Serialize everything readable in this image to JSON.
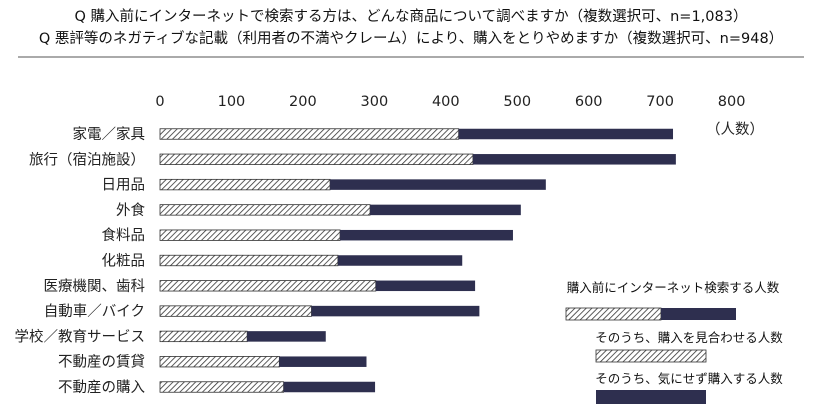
{
  "chart_data": {
    "type": "bar",
    "title_lines": [
      "Q 購入前にインターネットで検索する方は、どんな商品について調べますか（複数選択可、n=1,083）",
      "Q 悪評等のネガティブな記載（利用者の不満やクレーム）により、購入をとりやめますか（複数選択可、n=948）"
    ],
    "unit_label": "（人数）",
    "axis": {
      "min": 0,
      "max": 800,
      "ticks": [
        0,
        100,
        200,
        300,
        400,
        500,
        600,
        700,
        800
      ]
    },
    "categories": [
      "家電／家具",
      "旅行（宿泊施設）",
      "日用品",
      "外食",
      "食料品",
      "化粧品",
      "医療機関、歯科",
      "自動車／バイク",
      "学校／教育サービス",
      "不動産の賃貸",
      "不動産の購入"
    ],
    "series": [
      {
        "name": "購入前にインターネット検索する人数",
        "values": [
          718,
          722,
          540,
          505,
          494,
          423,
          441,
          447,
          232,
          289,
          301
        ]
      },
      {
        "name": "そのうち、購入を見合わせる人数",
        "values": [
          418,
          438,
          238,
          294,
          252,
          249,
          302,
          212,
          122,
          167,
          173
        ]
      },
      {
        "name": "そのうち、気にせず購入する人数",
        "values": [
          300,
          284,
          302,
          211,
          242,
          174,
          139,
          235,
          110,
          122,
          128
        ]
      }
    ],
    "legend": {
      "position": "bottom-right",
      "entries": [
        {
          "label": "購入前にインターネット検索する人数",
          "style": "combined"
        },
        {
          "label": "そのうち、購入を見合わせる人数",
          "style": "hatched"
        },
        {
          "label": "そのうち、気にせず購入する人数",
          "style": "solid"
        }
      ]
    },
    "colors": {
      "solid": "#2e2f4f",
      "hatch_stroke": "#333333",
      "hatch_fill": "#ffffff"
    }
  }
}
